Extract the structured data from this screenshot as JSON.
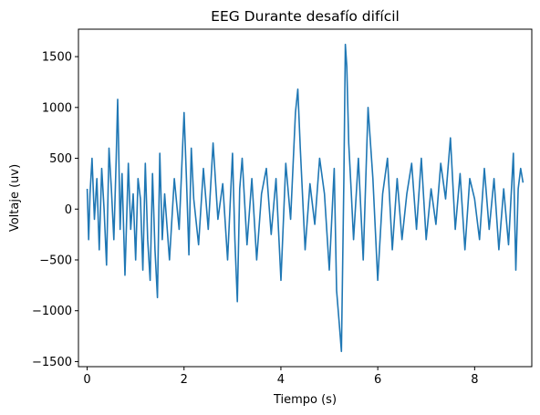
{
  "chart_data": {
    "type": "line",
    "title": "EEG Durante desafío difícil",
    "xlabel": "Tiempo (s)",
    "ylabel": "Voltaje (uv)",
    "xlim": [
      -0.18,
      9.18
    ],
    "ylim": [
      -1550,
      1770
    ],
    "xticks": [
      0,
      2,
      4,
      6,
      8
    ],
    "xtick_labels": [
      "0",
      "2",
      "4",
      "6",
      "8"
    ],
    "yticks": [
      -1500,
      -1000,
      -500,
      0,
      500,
      1000,
      1500
    ],
    "ytick_labels": [
      "−1500",
      "−1000",
      "−500",
      "0",
      "500",
      "1000",
      "1500"
    ],
    "grid": false,
    "line_color": "#1f77b4",
    "series": [
      {
        "x": [
          0.0,
          0.03,
          0.06,
          0.1,
          0.15,
          0.2,
          0.25,
          0.3,
          0.35,
          0.4,
          0.45,
          0.5,
          0.55,
          0.6,
          0.63,
          0.65,
          0.68,
          0.72,
          0.78,
          0.85,
          0.9,
          0.95,
          1.0,
          1.05,
          1.1,
          1.15,
          1.2,
          1.25,
          1.3,
          1.35,
          1.4,
          1.45,
          1.5,
          1.55,
          1.6,
          1.7,
          1.8,
          1.9,
          2.0,
          2.05,
          2.1,
          2.15,
          2.2,
          2.3,
          2.4,
          2.5,
          2.6,
          2.7,
          2.8,
          2.9,
          3.0,
          3.05,
          3.1,
          3.15,
          3.2,
          3.3,
          3.4,
          3.5,
          3.6,
          3.7,
          3.8,
          3.9,
          4.0,
          4.1,
          4.2,
          4.3,
          4.35,
          4.4,
          4.5,
          4.6,
          4.7,
          4.8,
          4.9,
          5.0,
          5.1,
          5.15,
          5.2,
          5.25,
          5.3,
          5.33,
          5.36,
          5.4,
          5.45,
          5.5,
          5.6,
          5.7,
          5.8,
          5.9,
          6.0,
          6.1,
          6.2,
          6.3,
          6.4,
          6.5,
          6.6,
          6.7,
          6.8,
          6.9,
          7.0,
          7.1,
          7.2,
          7.3,
          7.4,
          7.5,
          7.6,
          7.7,
          7.8,
          7.9,
          8.0,
          8.1,
          8.2,
          8.3,
          8.4,
          8.5,
          8.6,
          8.7,
          8.8,
          8.85,
          8.9,
          8.95,
          9.0
        ],
        "y": [
          200,
          -300,
          150,
          500,
          -100,
          300,
          -400,
          400,
          0,
          -550,
          600,
          200,
          -300,
          500,
          1080,
          600,
          -200,
          350,
          -650,
          450,
          -200,
          150,
          -500,
          300,
          100,
          -600,
          450,
          -300,
          -700,
          350,
          -400,
          -870,
          550,
          -300,
          150,
          -500,
          300,
          -200,
          950,
          300,
          -450,
          600,
          100,
          -350,
          400,
          -200,
          650,
          -100,
          250,
          -500,
          550,
          -300,
          -910,
          200,
          500,
          -350,
          300,
          -500,
          150,
          400,
          -250,
          300,
          -700,
          450,
          -100,
          950,
          1180,
          600,
          -400,
          250,
          -150,
          500,
          150,
          -600,
          400,
          -800,
          -1100,
          -1400,
          300,
          1620,
          1400,
          650,
          200,
          -300,
          500,
          -500,
          1000,
          300,
          -700,
          150,
          500,
          -400,
          300,
          -300,
          150,
          450,
          -200,
          500,
          -300,
          200,
          -150,
          450,
          100,
          700,
          -200,
          350,
          -400,
          300,
          100,
          -300,
          400,
          -200,
          300,
          -400,
          200,
          -350,
          550,
          -600,
          200,
          400,
          260
        ]
      }
    ]
  }
}
